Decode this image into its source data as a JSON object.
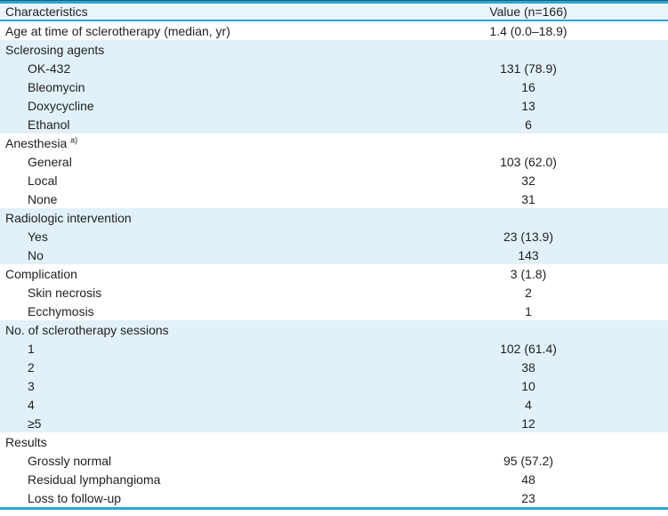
{
  "table": {
    "header": {
      "characteristics": "Characteristics",
      "value": "Value (n=166)"
    },
    "rows": [
      {
        "label": "Age at time of sclerotherapy (median, yr)",
        "value": "1.4 (0.0–18.9)",
        "indent": 0,
        "band": "white"
      },
      {
        "label": "Sclerosing agents",
        "value": "",
        "indent": 0,
        "band": "blue"
      },
      {
        "label": "OK-432",
        "value": "131 (78.9)",
        "indent": 1,
        "band": "blue"
      },
      {
        "label": "Bleomycin",
        "value": "16",
        "indent": 1,
        "band": "blue"
      },
      {
        "label": "Doxycycline",
        "value": "13",
        "indent": 1,
        "band": "blue"
      },
      {
        "label": "Ethanol",
        "value": "6",
        "indent": 1,
        "band": "blue"
      },
      {
        "label": "Anesthesia",
        "sup": "a)",
        "value": "",
        "indent": 0,
        "band": "white"
      },
      {
        "label": "General",
        "value": "103 (62.0)",
        "indent": 1,
        "band": "white"
      },
      {
        "label": "Local",
        "value": "32",
        "indent": 1,
        "band": "white"
      },
      {
        "label": "None",
        "value": "31",
        "indent": 1,
        "band": "white"
      },
      {
        "label": "Radiologic intervention",
        "value": "",
        "indent": 0,
        "band": "blue"
      },
      {
        "label": "Yes",
        "value": "23 (13.9)",
        "indent": 1,
        "band": "blue"
      },
      {
        "label": "No",
        "value": "143",
        "indent": 1,
        "band": "blue"
      },
      {
        "label": "Complication",
        "value": "3 (1.8)",
        "indent": 0,
        "band": "white"
      },
      {
        "label": "Skin necrosis",
        "value": "2",
        "indent": 1,
        "band": "white"
      },
      {
        "label": "Ecchymosis",
        "value": "1",
        "indent": 1,
        "band": "white"
      },
      {
        "label": "No. of sclerotherapy sessions",
        "value": "",
        "indent": 0,
        "band": "blue"
      },
      {
        "label": "1",
        "value": "102 (61.4)",
        "indent": 1,
        "band": "blue"
      },
      {
        "label": "2",
        "value": "38",
        "indent": 1,
        "band": "blue"
      },
      {
        "label": "3",
        "value": "10",
        "indent": 1,
        "band": "blue"
      },
      {
        "label": "4",
        "value": "4",
        "indent": 1,
        "band": "blue"
      },
      {
        "label": "≥5",
        "value": "12",
        "indent": 1,
        "band": "blue"
      },
      {
        "label": "Results",
        "value": "",
        "indent": 0,
        "band": "white"
      },
      {
        "label": "Grossly normal",
        "value": "95 (57.2)",
        "indent": 1,
        "band": "white"
      },
      {
        "label": "Residual lymphangioma",
        "value": "48",
        "indent": 1,
        "band": "white"
      },
      {
        "label": "Loss to follow-up",
        "value": "23",
        "indent": 1,
        "band": "white"
      }
    ]
  },
  "colors": {
    "band_blue": "#e2f1f9",
    "header_bg": "#e9f4fb",
    "rule_blue": "#2da4d4",
    "rule_dark": "#155f80",
    "text": "#1f1f1f"
  }
}
